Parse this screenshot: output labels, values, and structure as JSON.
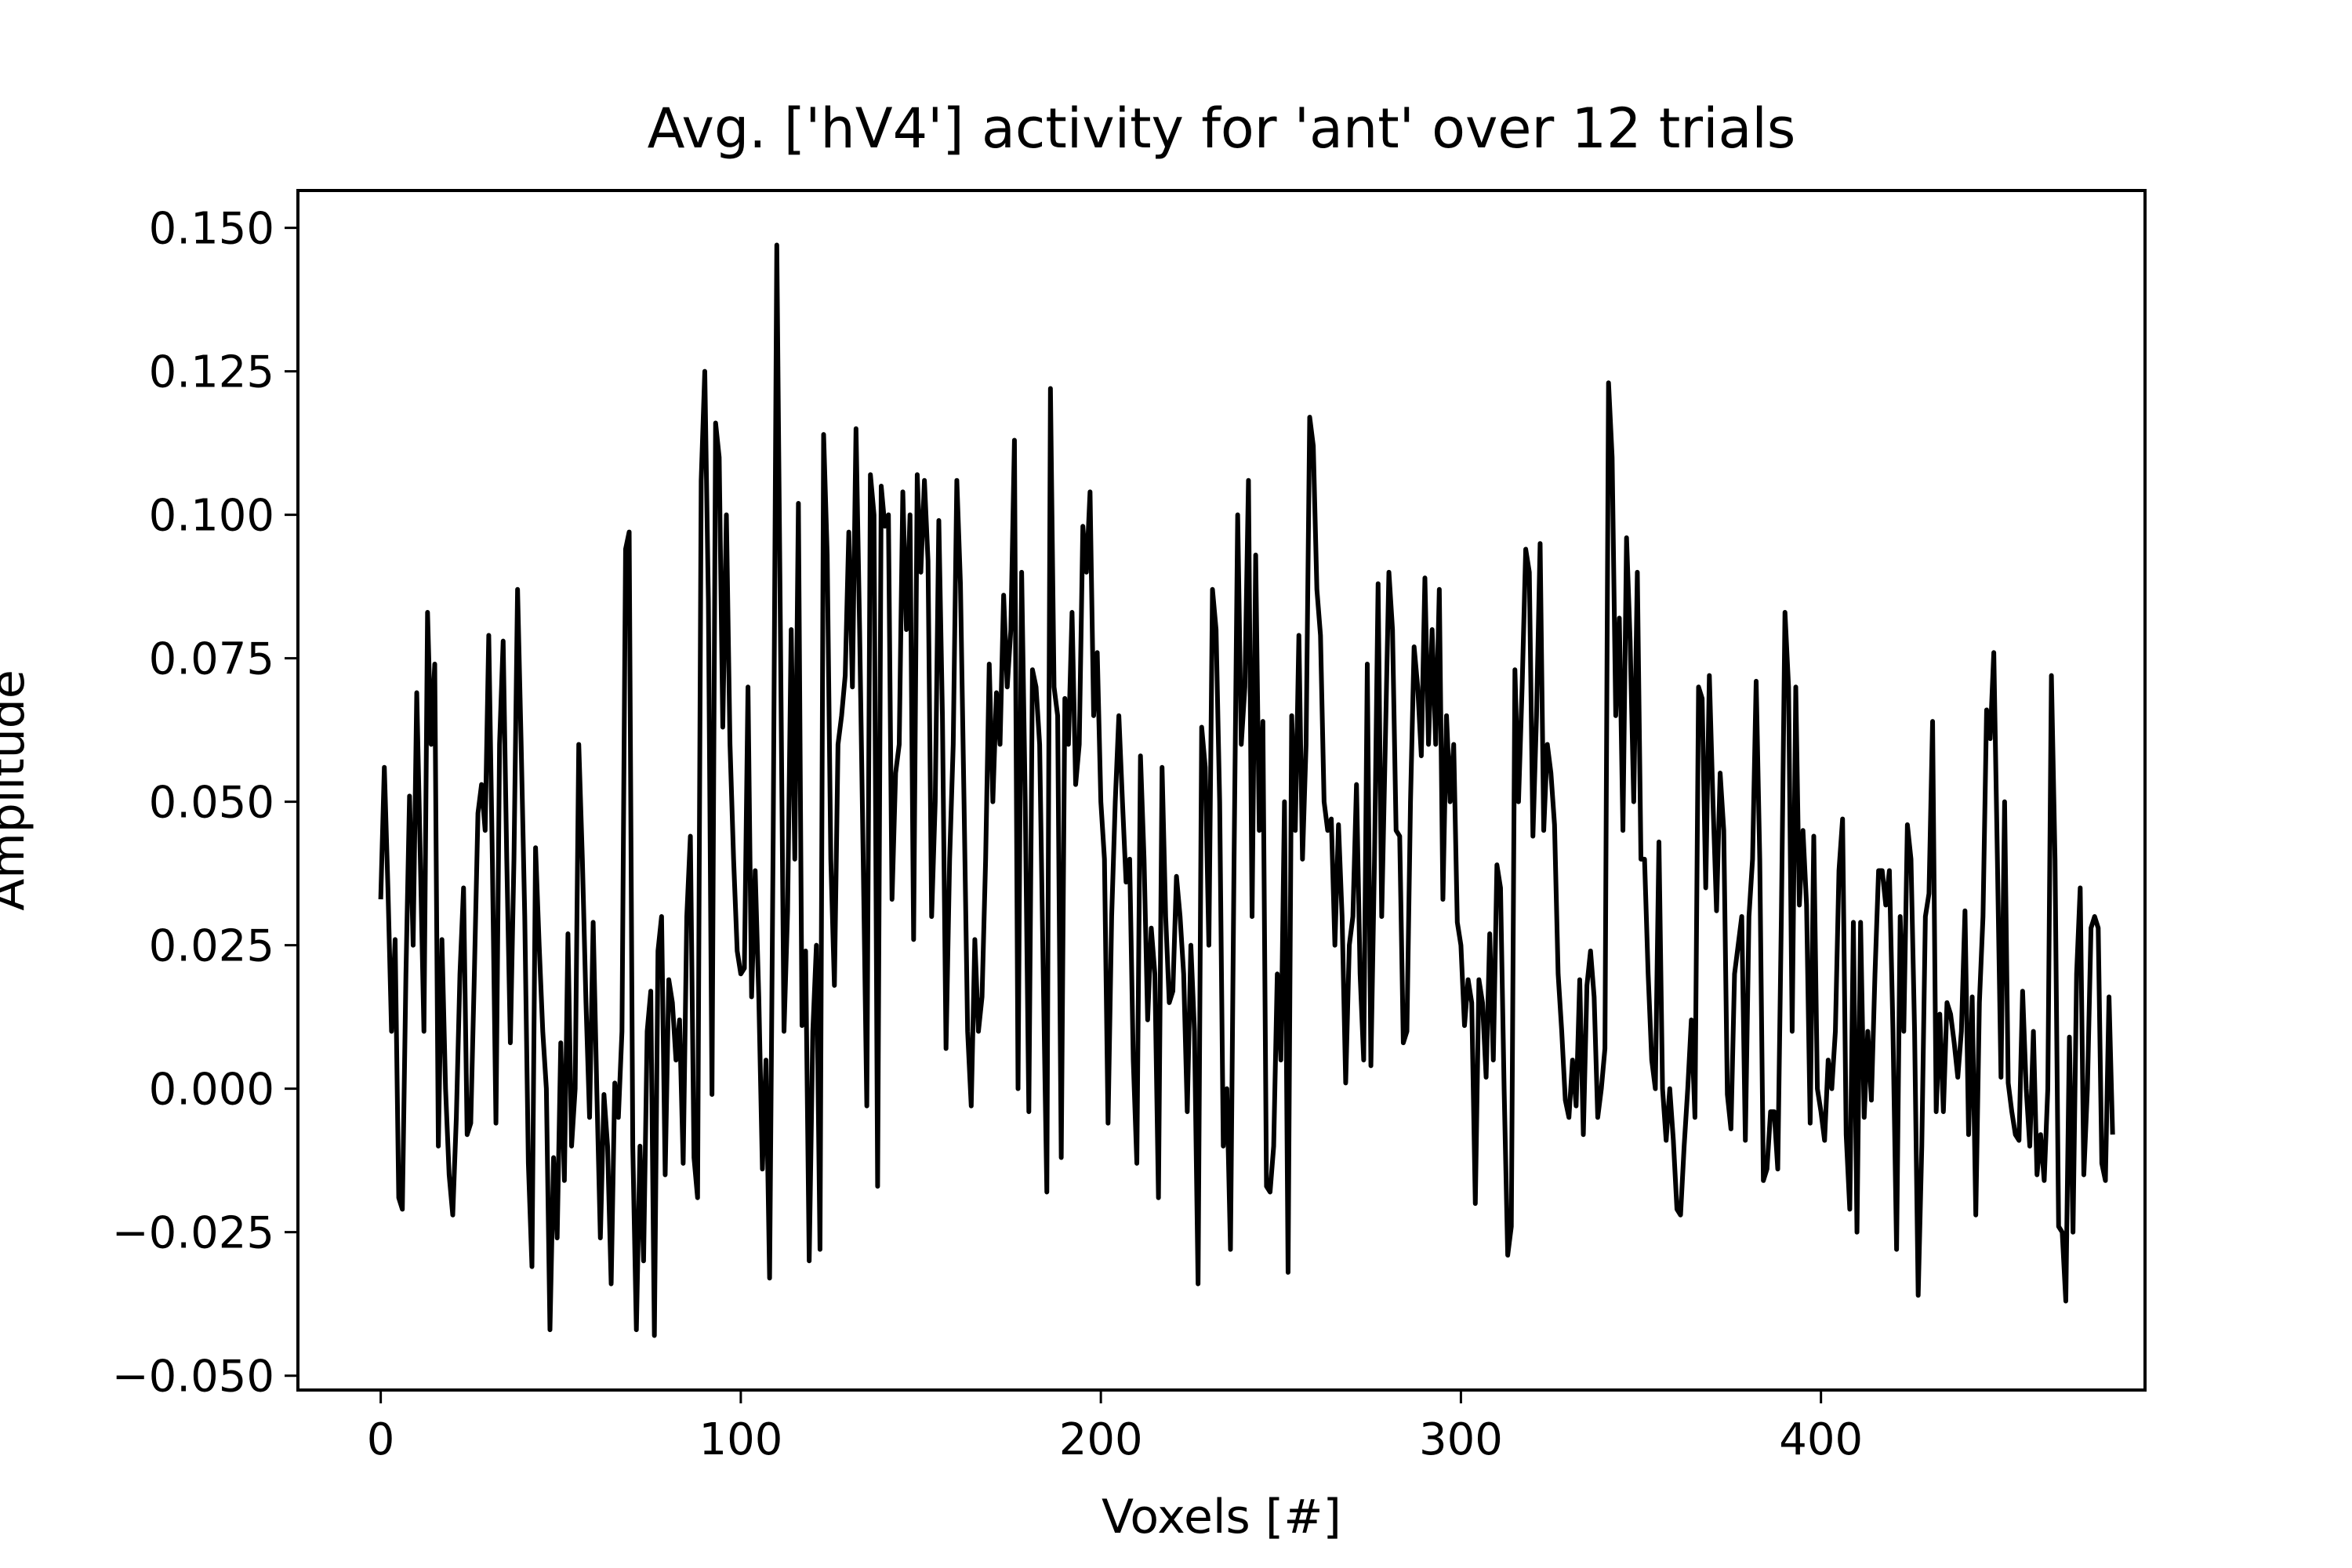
{
  "chart_data": {
    "type": "line",
    "title": "Avg. ['hV4'] activity for 'ant' over 12 trials",
    "xlabel": "Voxels [#]",
    "ylabel": "Amplitude",
    "xlim": [
      -23,
      490
    ],
    "ylim": [
      -0.0525,
      0.1565
    ],
    "xticks": [
      0,
      100,
      200,
      300,
      400
    ],
    "xtick_labels": [
      "0",
      "100",
      "200",
      "300",
      "400"
    ],
    "yticks": [
      -0.05,
      -0.025,
      0,
      0.025,
      0.05,
      0.075,
      0.1,
      0.125,
      0.15
    ],
    "ytick_labels": [
      "−0.050",
      "−0.025",
      "0.000",
      "0.025",
      "0.050",
      "0.075",
      "0.100",
      "0.125",
      "0.150"
    ],
    "grid": false,
    "line_color": "#000000",
    "series": [
      {
        "values": [
          0.033,
          0.056,
          0.035,
          0.01,
          0.026,
          -0.019,
          -0.021,
          0.02,
          0.051,
          0.025,
          0.069,
          0.04,
          0.01,
          0.083,
          0.06,
          0.074,
          -0.01,
          0.026,
          0.0,
          -0.015,
          -0.022,
          -0.005,
          0.02,
          0.035,
          -0.008,
          -0.006,
          0.02,
          0.048,
          0.053,
          0.045,
          0.079,
          0.04,
          -0.006,
          0.06,
          0.078,
          0.04,
          0.008,
          0.04,
          0.087,
          0.06,
          0.03,
          -0.013,
          -0.031,
          0.042,
          0.025,
          0.01,
          0.0,
          -0.042,
          -0.012,
          -0.026,
          0.008,
          -0.016,
          0.027,
          -0.01,
          0.0,
          0.06,
          0.04,
          0.015,
          -0.005,
          0.029,
          0.0,
          -0.026,
          -0.001,
          -0.01,
          -0.034,
          0.001,
          -0.005,
          0.01,
          0.094,
          0.097,
          -0.01,
          -0.042,
          -0.01,
          -0.03,
          0.01,
          0.017,
          -0.043,
          0.024,
          0.03,
          -0.015,
          0.019,
          0.015,
          0.005,
          0.012,
          -0.013,
          0.03,
          0.044,
          -0.012,
          -0.019,
          0.106,
          0.125,
          0.085,
          -0.001,
          0.116,
          0.11,
          0.063,
          0.1,
          0.06,
          0.04,
          0.024,
          0.02,
          0.021,
          0.07,
          0.016,
          0.038,
          0.016,
          -0.014,
          0.005,
          -0.033,
          0.044,
          0.147,
          0.08,
          0.01,
          0.031,
          0.08,
          0.04,
          0.102,
          0.011,
          0.024,
          -0.03,
          0.01,
          0.025,
          -0.028,
          0.114,
          0.093,
          0.04,
          0.018,
          0.06,
          0.065,
          0.072,
          0.097,
          0.07,
          0.115,
          0.08,
          0.04,
          -0.003,
          0.107,
          0.1,
          -0.017,
          0.105,
          0.098,
          0.1,
          0.033,
          0.055,
          0.06,
          0.104,
          0.08,
          0.1,
          0.026,
          0.107,
          0.09,
          0.106,
          0.092,
          0.03,
          0.05,
          0.099,
          0.065,
          0.007,
          0.04,
          0.06,
          0.106,
          0.088,
          0.05,
          0.01,
          -0.003,
          0.026,
          0.01,
          0.016,
          0.04,
          0.074,
          0.05,
          0.069,
          0.06,
          0.086,
          0.07,
          0.08,
          0.113,
          0.0,
          0.09,
          0.05,
          -0.004,
          0.073,
          0.07,
          0.06,
          0.02,
          -0.018,
          0.122,
          0.07,
          0.065,
          -0.012,
          0.068,
          0.06,
          0.083,
          0.053,
          0.06,
          0.098,
          0.09,
          0.104,
          0.065,
          0.076,
          0.05,
          0.04,
          -0.006,
          0.03,
          0.05,
          0.065,
          0.05,
          0.036,
          0.04,
          0.005,
          -0.013,
          0.058,
          0.04,
          0.012,
          0.028,
          0.02,
          -0.019,
          0.056,
          0.03,
          0.015,
          0.017,
          0.037,
          0.03,
          0.02,
          -0.004,
          0.025,
          0.01,
          -0.034,
          0.063,
          0.056,
          0.025,
          0.087,
          0.08,
          0.05,
          -0.01,
          0.0,
          -0.028,
          0.04,
          0.1,
          0.06,
          0.07,
          0.106,
          0.03,
          0.093,
          0.045,
          0.064,
          -0.017,
          -0.018,
          -0.01,
          0.02,
          0.005,
          0.05,
          -0.032,
          0.065,
          0.045,
          0.079,
          0.04,
          0.06,
          0.117,
          0.112,
          0.087,
          0.079,
          0.05,
          0.045,
          0.047,
          0.025,
          0.046,
          0.03,
          0.001,
          0.025,
          0.03,
          0.053,
          0.02,
          0.005,
          0.074,
          0.004,
          0.04,
          0.088,
          0.03,
          0.06,
          0.09,
          0.08,
          0.045,
          0.044,
          0.008,
          0.01,
          0.05,
          0.077,
          0.07,
          0.058,
          0.089,
          0.06,
          0.08,
          0.06,
          0.087,
          0.033,
          0.065,
          0.05,
          0.06,
          0.029,
          0.025,
          0.011,
          0.019,
          0.015,
          -0.02,
          0.019,
          0.015,
          0.002,
          0.027,
          0.005,
          0.039,
          0.035,
          0.0,
          -0.029,
          -0.024,
          0.073,
          0.05,
          0.07,
          0.094,
          0.09,
          0.044,
          0.065,
          0.095,
          0.045,
          0.06,
          0.055,
          0.046,
          0.02,
          0.01,
          -0.002,
          -0.005,
          0.005,
          -0.003,
          0.019,
          -0.008,
          0.018,
          0.024,
          0.016,
          -0.005,
          0.0,
          0.007,
          0.123,
          0.11,
          0.065,
          0.082,
          0.045,
          0.096,
          0.078,
          0.05,
          0.09,
          0.04,
          0.04,
          0.02,
          0.005,
          0.0,
          0.043,
          0.0,
          -0.009,
          0.0,
          -0.009,
          -0.021,
          -0.022,
          -0.01,
          0.0,
          0.012,
          -0.005,
          0.07,
          0.068,
          0.035,
          0.072,
          0.05,
          0.031,
          0.055,
          0.045,
          -0.001,
          -0.007,
          0.02,
          0.025,
          0.03,
          -0.009,
          0.03,
          0.04,
          0.071,
          0.04,
          -0.016,
          -0.014,
          -0.004,
          -0.004,
          -0.014,
          0.03,
          0.083,
          0.07,
          0.01,
          0.07,
          0.032,
          0.045,
          0.032,
          -0.006,
          0.044,
          0.0,
          -0.004,
          -0.009,
          0.005,
          0.0,
          0.01,
          0.038,
          0.047,
          -0.008,
          -0.021,
          0.029,
          -0.025,
          0.029,
          -0.005,
          0.01,
          -0.002,
          0.02,
          0.038,
          0.038,
          0.032,
          0.038,
          0.01,
          -0.028,
          0.03,
          0.01,
          0.046,
          0.04,
          0.01,
          -0.036,
          -0.01,
          0.03,
          0.034,
          0.064,
          -0.004,
          0.013,
          -0.004,
          0.015,
          0.013,
          0.008,
          0.002,
          0.01,
          0.031,
          -0.008,
          0.016,
          -0.022,
          0.015,
          0.03,
          0.066,
          0.061,
          0.076,
          0.04,
          0.002,
          0.05,
          0.001,
          -0.004,
          -0.008,
          -0.009,
          0.017,
          0.0,
          -0.01,
          0.01,
          -0.015,
          -0.008,
          -0.016,
          0.0,
          0.072,
          0.04,
          -0.024,
          -0.025,
          -0.037,
          0.009,
          -0.025,
          0.02,
          0.035,
          -0.015,
          0.0,
          0.028,
          0.03,
          0.028,
          -0.013,
          -0.016,
          0.016,
          -0.008
        ]
      }
    ]
  }
}
